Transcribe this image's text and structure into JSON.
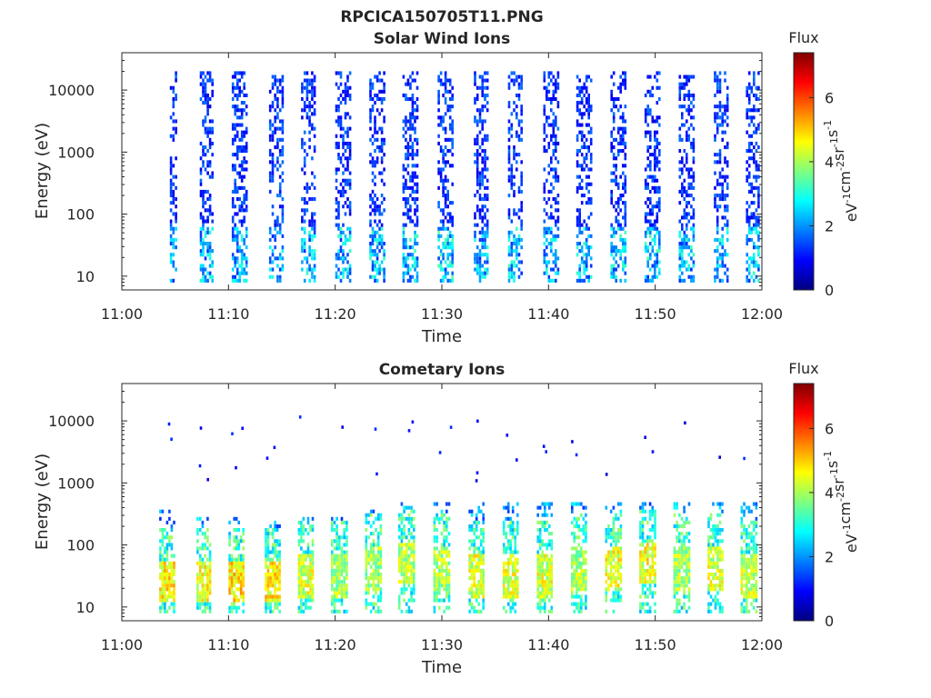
{
  "figure": {
    "title": "RPCICA150705T11.PNG"
  },
  "colormap": {
    "name": "jet",
    "stops": [
      "#00007f",
      "#0000ff",
      "#007fff",
      "#00ffff",
      "#7fff7f",
      "#ffff00",
      "#ff7f00",
      "#ff0000",
      "#7f0000"
    ]
  },
  "chart_data": [
    {
      "type": "heatmap",
      "title": "Solar Wind Ions",
      "xlabel": "Time",
      "ylabel": "Energy (eV)",
      "xlim": [
        "11:00",
        "12:00"
      ],
      "ylim": [
        6,
        40000
      ],
      "yscale": "log",
      "x_ticks": [
        "11:00",
        "11:10",
        "11:20",
        "11:30",
        "11:40",
        "11:50",
        "12:00"
      ],
      "y_ticks": [
        10,
        100,
        1000,
        10000
      ],
      "y_tick_labels": [
        "10",
        "100",
        "1000",
        "10000"
      ],
      "colorbar": {
        "label": "Flux",
        "unit": "eV⁻¹cm⁻²sr⁻¹s⁻¹",
        "unit_parts": [
          [
            "eV",
            "-1"
          ],
          [
            "cm",
            "-2"
          ],
          [
            "sr",
            "-1"
          ],
          [
            "s",
            "-1"
          ]
        ],
        "range": [
          0,
          7.4
        ],
        "ticks": [
          0,
          2,
          4,
          6
        ],
        "tick_labels": [
          "0",
          "2",
          "4",
          "6"
        ]
      },
      "grid": false,
      "bursts": [
        {
          "start": "11:04.5",
          "end": "11:05.2",
          "emin": 8,
          "emax": 20000,
          "peak": 2.5
        },
        {
          "start": "11:07.3",
          "end": "11:08.6",
          "emin": 8,
          "emax": 20000,
          "peak": 2.5
        },
        {
          "start": "11:10.3",
          "end": "11:11.8",
          "emin": 8,
          "emax": 20000,
          "peak": 2.5
        },
        {
          "start": "11:13.8",
          "end": "11:15.2",
          "emin": 8,
          "emax": 20000,
          "peak": 2.5
        },
        {
          "start": "11:16.8",
          "end": "11:18.2",
          "emin": 8,
          "emax": 20000,
          "peak": 2.6
        },
        {
          "start": "11:20.0",
          "end": "11:21.5",
          "emin": 8,
          "emax": 20000,
          "peak": 2.7
        },
        {
          "start": "11:23.2",
          "end": "11:24.7",
          "emin": 8,
          "emax": 20000,
          "peak": 2.7
        },
        {
          "start": "11:26.3",
          "end": "11:27.8",
          "emin": 8,
          "emax": 20000,
          "peak": 2.7
        },
        {
          "start": "11:29.6",
          "end": "11:31.1",
          "emin": 8,
          "emax": 20000,
          "peak": 2.9
        },
        {
          "start": "11:33.0",
          "end": "11:34.4",
          "emin": 8,
          "emax": 20000,
          "peak": 2.6
        },
        {
          "start": "11:36.2",
          "end": "11:37.6",
          "emin": 8,
          "emax": 20000,
          "peak": 2.7
        },
        {
          "start": "11:39.5",
          "end": "11:41.0",
          "emin": 8,
          "emax": 20000,
          "peak": 2.6
        },
        {
          "start": "11:42.6",
          "end": "11:44.1",
          "emin": 8,
          "emax": 20000,
          "peak": 2.6
        },
        {
          "start": "11:45.8",
          "end": "11:47.3",
          "emin": 8,
          "emax": 20000,
          "peak": 2.7
        },
        {
          "start": "11:49.0",
          "end": "11:50.5",
          "emin": 8,
          "emax": 20000,
          "peak": 2.8
        },
        {
          "start": "11:52.2",
          "end": "11:53.7",
          "emin": 8,
          "emax": 20000,
          "peak": 2.7
        },
        {
          "start": "11:55.5",
          "end": "11:56.9",
          "emin": 8,
          "emax": 20000,
          "peak": 2.7
        },
        {
          "start": "11:58.5",
          "end": "11:59.8",
          "emin": 8,
          "emax": 20000,
          "peak": 2.6
        }
      ]
    },
    {
      "type": "heatmap",
      "title": "Cometary Ions",
      "xlabel": "Time",
      "ylabel": "Energy (eV)",
      "xlim": [
        "11:00",
        "12:00"
      ],
      "ylim": [
        6,
        40000
      ],
      "yscale": "log",
      "x_ticks": [
        "11:00",
        "11:10",
        "11:20",
        "11:30",
        "11:40",
        "11:50",
        "12:00"
      ],
      "y_ticks": [
        10,
        100,
        1000,
        10000
      ],
      "y_tick_labels": [
        "10",
        "100",
        "1000",
        "10000"
      ],
      "colorbar": {
        "label": "Flux",
        "unit": "eV⁻¹cm⁻²sr⁻¹s⁻¹",
        "unit_parts": [
          [
            "eV",
            "-1"
          ],
          [
            "cm",
            "-2"
          ],
          [
            "sr",
            "-1"
          ],
          [
            "s",
            "-1"
          ]
        ],
        "range": [
          0,
          7.4
        ],
        "ticks": [
          0,
          2,
          4,
          6
        ],
        "tick_labels": [
          "0",
          "2",
          "4",
          "6"
        ]
      },
      "grid": false,
      "bursts": [
        {
          "start": "11:03.5",
          "end": "11:05.0",
          "emin": 8,
          "emax": 400,
          "peak": 5.4,
          "peak_energy": 25
        },
        {
          "start": "11:07.0",
          "end": "11:08.4",
          "emin": 8,
          "emax": 300,
          "peak": 5.2,
          "peak_energy": 25
        },
        {
          "start": "11:10.0",
          "end": "11:11.5",
          "emin": 8,
          "emax": 300,
          "peak": 5.5,
          "peak_energy": 25
        },
        {
          "start": "11:13.4",
          "end": "11:14.9",
          "emin": 8,
          "emax": 300,
          "peak": 5.4,
          "peak_energy": 25
        },
        {
          "start": "11:16.5",
          "end": "11:18.0",
          "emin": 8,
          "emax": 300,
          "peak": 5.0,
          "peak_energy": 30
        },
        {
          "start": "11:19.6",
          "end": "11:21.2",
          "emin": 8,
          "emax": 300,
          "peak": 4.6,
          "peak_energy": 30
        },
        {
          "start": "11:22.8",
          "end": "11:24.4",
          "emin": 8,
          "emax": 400,
          "peak": 4.6,
          "peak_energy": 40
        },
        {
          "start": "11:25.9",
          "end": "11:27.5",
          "emin": 8,
          "emax": 500,
          "peak": 4.8,
          "peak_energy": 50
        },
        {
          "start": "11:29.2",
          "end": "11:30.8",
          "emin": 8,
          "emax": 500,
          "peak": 4.7,
          "peak_energy": 40
        },
        {
          "start": "11:32.5",
          "end": "11:34.0",
          "emin": 8,
          "emax": 500,
          "peak": 5.0,
          "peak_energy": 30
        },
        {
          "start": "11:35.7",
          "end": "11:37.2",
          "emin": 8,
          "emax": 500,
          "peak": 5.0,
          "peak_energy": 30
        },
        {
          "start": "11:38.9",
          "end": "11:40.4",
          "emin": 8,
          "emax": 500,
          "peak": 5.0,
          "peak_energy": 30
        },
        {
          "start": "11:42.1",
          "end": "11:43.6",
          "emin": 8,
          "emax": 500,
          "peak": 4.7,
          "peak_energy": 40
        },
        {
          "start": "11:45.3",
          "end": "11:46.9",
          "emin": 8,
          "emax": 500,
          "peak": 5.1,
          "peak_energy": 40
        },
        {
          "start": "11:48.5",
          "end": "11:50.1",
          "emin": 8,
          "emax": 500,
          "peak": 5.2,
          "peak_energy": 50
        },
        {
          "start": "11:51.7",
          "end": "11:53.3",
          "emin": 8,
          "emax": 500,
          "peak": 4.7,
          "peak_energy": 40
        },
        {
          "start": "11:54.9",
          "end": "11:56.4",
          "emin": 8,
          "emax": 500,
          "peak": 5.0,
          "peak_energy": 40
        },
        {
          "start": "11:58.0",
          "end": "11:59.6",
          "emin": 8,
          "emax": 500,
          "peak": 4.9,
          "peak_energy": 30
        }
      ]
    }
  ]
}
